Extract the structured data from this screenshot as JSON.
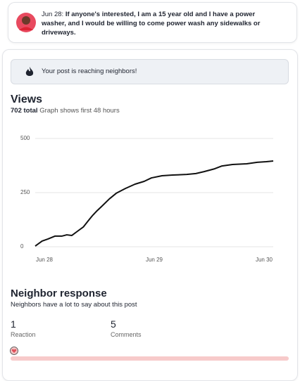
{
  "post": {
    "date": "Jun 28:",
    "text": "If anyone's interested, I am a 15 year old and I have a power washer, and I would be willing to come power wash any sidewalks or driveways."
  },
  "banner": "Your post is reaching neighbors!",
  "views": {
    "title": "Views",
    "total": "702 total",
    "note": "Graph shows first 48 hours"
  },
  "chart_data": {
    "type": "line",
    "color": "#111111",
    "grid": true,
    "x": [
      0,
      1.5,
      2.8,
      4.3,
      5.8,
      6.9,
      8,
      9.2,
      10.5,
      11.7,
      12.6,
      13.5,
      14.6,
      16.2,
      17.7,
      19.7,
      21.8,
      23.8,
      25.4,
      27.7,
      30,
      33.1,
      35.1,
      36.9,
      39.2,
      40.8,
      43.1,
      46.2,
      48.5,
      50.5,
      52
    ],
    "values": [
      3,
      26,
      36,
      49,
      49,
      55,
      52,
      71,
      91,
      123,
      146,
      166,
      188,
      221,
      247,
      269,
      289,
      302,
      318,
      328,
      331,
      334,
      338,
      347,
      360,
      373,
      380,
      383,
      390,
      393,
      396
    ],
    "xlim": [
      0,
      52
    ],
    "xticks": [
      {
        "value": 2,
        "label": "Jun 28"
      },
      {
        "value": 26,
        "label": "Jun 29"
      },
      {
        "value": 50,
        "label": "Jun 30"
      }
    ],
    "ylim": [
      0,
      500
    ],
    "yticks": [
      0,
      250,
      500
    ]
  },
  "response": {
    "title": "Neighbor response",
    "subtitle": "Neighbors have a lot to say about this post",
    "stats": [
      {
        "value": 1,
        "label": "Reaction"
      },
      {
        "value": 5,
        "label": "Comments"
      }
    ]
  }
}
